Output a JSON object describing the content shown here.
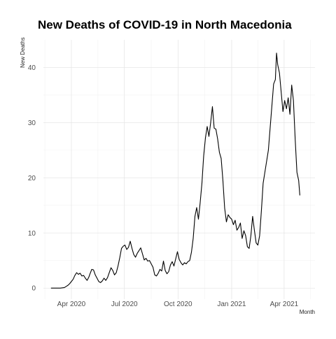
{
  "chart_data": {
    "type": "line",
    "title": "New Deaths of COVID-19 in North Macedonia",
    "xlabel": "Month",
    "ylabel": "New Deaths",
    "xlim": [
      "2020-02-13",
      "2021-05-24"
    ],
    "ylim": [
      -2,
      45
    ],
    "grid": true,
    "x_ticks": [
      {
        "date": "2020-04-01",
        "label": "Apr 2020"
      },
      {
        "date": "2020-07-01",
        "label": "Jul 2020"
      },
      {
        "date": "2020-10-01",
        "label": "Oct 2020"
      },
      {
        "date": "2021-01-01",
        "label": "Jan 2021"
      },
      {
        "date": "2021-04-01",
        "label": "Apr 2021"
      }
    ],
    "y_ticks": [
      0,
      10,
      20,
      30,
      40
    ],
    "series": [
      {
        "color": "#000000",
        "points": [
          [
            "2020-02-26",
            0
          ],
          [
            "2020-03-05",
            0
          ],
          [
            "2020-03-13",
            0
          ],
          [
            "2020-03-20",
            0.1
          ],
          [
            "2020-03-23",
            0.3
          ],
          [
            "2020-03-26",
            0.5
          ],
          [
            "2020-03-29",
            0.8
          ],
          [
            "2020-04-01",
            1.2
          ],
          [
            "2020-04-04",
            1.6
          ],
          [
            "2020-04-07",
            2.3
          ],
          [
            "2020-04-10",
            2.8
          ],
          [
            "2020-04-13",
            2.5
          ],
          [
            "2020-04-16",
            2.7
          ],
          [
            "2020-04-19",
            2.2
          ],
          [
            "2020-04-22",
            2.3
          ],
          [
            "2020-04-25",
            1.8
          ],
          [
            "2020-04-28",
            1.4
          ],
          [
            "2020-05-01",
            2.0
          ],
          [
            "2020-05-03",
            2.6
          ],
          [
            "2020-05-06",
            3.4
          ],
          [
            "2020-05-09",
            3.3
          ],
          [
            "2020-05-12",
            2.4
          ],
          [
            "2020-05-15",
            1.8
          ],
          [
            "2020-05-18",
            1.2
          ],
          [
            "2020-05-21",
            1.0
          ],
          [
            "2020-05-24",
            1.3
          ],
          [
            "2020-05-27",
            1.8
          ],
          [
            "2020-05-30",
            1.4
          ],
          [
            "2020-06-02",
            1.9
          ],
          [
            "2020-06-05",
            2.8
          ],
          [
            "2020-06-08",
            3.7
          ],
          [
            "2020-06-11",
            3.2
          ],
          [
            "2020-06-14",
            2.4
          ],
          [
            "2020-06-17",
            2.8
          ],
          [
            "2020-06-20",
            4.0
          ],
          [
            "2020-06-23",
            5.5
          ],
          [
            "2020-06-26",
            7.2
          ],
          [
            "2020-06-29",
            7.6
          ],
          [
            "2020-07-02",
            7.8
          ],
          [
            "2020-07-05",
            7.0
          ],
          [
            "2020-07-08",
            7.4
          ],
          [
            "2020-07-11",
            8.5
          ],
          [
            "2020-07-14",
            7.2
          ],
          [
            "2020-07-17",
            6.1
          ],
          [
            "2020-07-20",
            5.6
          ],
          [
            "2020-07-23",
            6.3
          ],
          [
            "2020-07-26",
            6.8
          ],
          [
            "2020-07-29",
            7.3
          ],
          [
            "2020-08-01",
            6.2
          ],
          [
            "2020-08-04",
            5.1
          ],
          [
            "2020-08-07",
            5.4
          ],
          [
            "2020-08-10",
            4.9
          ],
          [
            "2020-08-13",
            5.0
          ],
          [
            "2020-08-16",
            4.4
          ],
          [
            "2020-08-19",
            3.8
          ],
          [
            "2020-08-22",
            2.4
          ],
          [
            "2020-08-25",
            2.2
          ],
          [
            "2020-08-28",
            2.7
          ],
          [
            "2020-08-31",
            3.4
          ],
          [
            "2020-09-03",
            3.1
          ],
          [
            "2020-09-06",
            4.9
          ],
          [
            "2020-09-09",
            3.2
          ],
          [
            "2020-09-12",
            2.6
          ],
          [
            "2020-09-15",
            3.0
          ],
          [
            "2020-09-18",
            4.2
          ],
          [
            "2020-09-21",
            4.8
          ],
          [
            "2020-09-24",
            4.0
          ],
          [
            "2020-09-27",
            5.3
          ],
          [
            "2020-09-30",
            6.6
          ],
          [
            "2020-10-03",
            5.2
          ],
          [
            "2020-10-06",
            4.6
          ],
          [
            "2020-10-09",
            4.2
          ],
          [
            "2020-10-12",
            4.6
          ],
          [
            "2020-10-15",
            4.4
          ],
          [
            "2020-10-18",
            4.8
          ],
          [
            "2020-10-21",
            5.0
          ],
          [
            "2020-10-24",
            6.5
          ],
          [
            "2020-10-27",
            9.0
          ],
          [
            "2020-10-30",
            13.0
          ],
          [
            "2020-11-02",
            14.6
          ],
          [
            "2020-11-05",
            12.5
          ],
          [
            "2020-11-08",
            15.5
          ],
          [
            "2020-11-11",
            19.0
          ],
          [
            "2020-11-14",
            24.0
          ],
          [
            "2020-11-17",
            27.2
          ],
          [
            "2020-11-20",
            29.3
          ],
          [
            "2020-11-23",
            27.5
          ],
          [
            "2020-11-26",
            30.0
          ],
          [
            "2020-11-29",
            32.9
          ],
          [
            "2020-12-02",
            29.0
          ],
          [
            "2020-12-05",
            28.8
          ],
          [
            "2020-12-08",
            27.0
          ],
          [
            "2020-12-11",
            24.6
          ],
          [
            "2020-12-14",
            23.5
          ],
          [
            "2020-12-17",
            19.5
          ],
          [
            "2020-12-20",
            14.5
          ],
          [
            "2020-12-23",
            12.0
          ],
          [
            "2020-12-26",
            13.3
          ],
          [
            "2020-12-29",
            12.8
          ],
          [
            "2021-01-01",
            12.5
          ],
          [
            "2021-01-04",
            11.5
          ],
          [
            "2021-01-07",
            12.3
          ],
          [
            "2021-01-10",
            10.5
          ],
          [
            "2021-01-13",
            11.0
          ],
          [
            "2021-01-16",
            11.8
          ],
          [
            "2021-01-19",
            9.0
          ],
          [
            "2021-01-22",
            10.4
          ],
          [
            "2021-01-25",
            9.5
          ],
          [
            "2021-01-28",
            7.5
          ],
          [
            "2021-01-31",
            7.2
          ],
          [
            "2021-02-03",
            9.5
          ],
          [
            "2021-02-06",
            13.0
          ],
          [
            "2021-02-09",
            10.5
          ],
          [
            "2021-02-12",
            8.2
          ],
          [
            "2021-02-15",
            7.8
          ],
          [
            "2021-02-18",
            9.5
          ],
          [
            "2021-02-21",
            14.0
          ],
          [
            "2021-02-24",
            19.0
          ],
          [
            "2021-02-27",
            21.0
          ],
          [
            "2021-03-02",
            23.0
          ],
          [
            "2021-03-05",
            25.0
          ],
          [
            "2021-03-08",
            29.0
          ],
          [
            "2021-03-11",
            33.0
          ],
          [
            "2021-03-14",
            37.0
          ],
          [
            "2021-03-17",
            37.8
          ],
          [
            "2021-03-19",
            42.6
          ],
          [
            "2021-03-21",
            40.5
          ],
          [
            "2021-03-24",
            39.0
          ],
          [
            "2021-03-27",
            35.5
          ],
          [
            "2021-03-30",
            32.0
          ],
          [
            "2021-04-02",
            34.0
          ],
          [
            "2021-04-05",
            32.5
          ],
          [
            "2021-04-08",
            34.5
          ],
          [
            "2021-04-11",
            31.5
          ],
          [
            "2021-04-14",
            36.8
          ],
          [
            "2021-04-17",
            34.0
          ],
          [
            "2021-04-20",
            27.0
          ],
          [
            "2021-04-23",
            21.0
          ],
          [
            "2021-04-26",
            19.5
          ],
          [
            "2021-04-28",
            16.8
          ]
        ]
      }
    ]
  }
}
